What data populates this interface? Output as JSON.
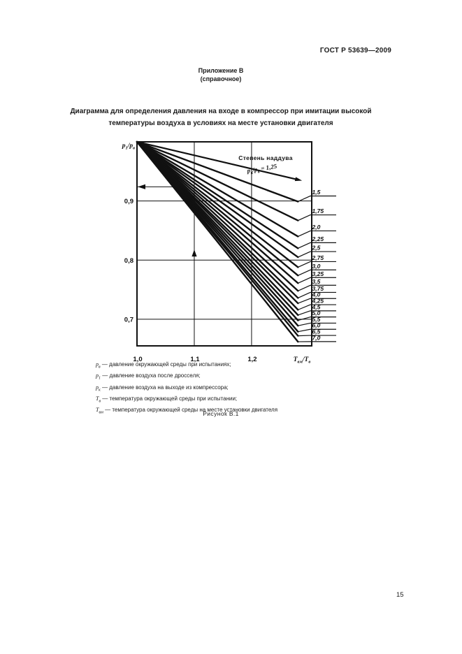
{
  "page": {
    "header": "ГОСТ Р 53639—2009",
    "appendix_title": "Приложение В",
    "appendix_subtitle": "(справочное)",
    "title": "Диаграмма для определения давления на входе в компрессор при имитации высокой температуры воздуха в условиях на месте установки двигателя",
    "figure_caption": "Рисунок В.1",
    "page_number": "15"
  },
  "legend": [
    {
      "symbol": "p_{в}",
      "text": "— давление окружающей среды при испытаниях;"
    },
    {
      "symbol": "p_{1}",
      "text": "— давление воздуха после дросселя;"
    },
    {
      "symbol": "p_{к}",
      "text": "— давление воздуха на выходе из компрессора;"
    },
    {
      "symbol": "T_{в}",
      "text": "— температура окружающей среды при испытании;"
    },
    {
      "symbol": "T_{вм}",
      "text": "— температура окружающей среды на месте установки двигателя"
    }
  ],
  "chart_data": {
    "type": "line",
    "title": "",
    "xlabel": "T_{вм}/T_{в}",
    "ylabel": "p_{1}/p_{в}",
    "xlim": [
      1.0,
      1.305
    ],
    "ylim": [
      0.655,
      1.0
    ],
    "grid": true,
    "x_ticks": [
      {
        "value": 1.0,
        "label": "1,0"
      },
      {
        "value": 1.1,
        "label": "1,1"
      },
      {
        "value": 1.2,
        "label": "1,2"
      }
    ],
    "y_ticks": [
      {
        "value": 0.9,
        "label": "0,9"
      },
      {
        "value": 0.8,
        "label": "0,8"
      },
      {
        "value": 0.7,
        "label": "0,7"
      }
    ],
    "annotation": {
      "line1": "Степень наддува",
      "line2": "p_{к}/p_{в} = 1,25"
    },
    "convergence_point": {
      "x": 1.0,
      "y": 1.0
    },
    "series_note": "each boost-ratio line runs straight from (1.0, 1.0) down to its end value of p1/pв at Tвм/Tв ≈ 1.28",
    "series": [
      {
        "label": "1,25",
        "x_end": 1.281,
        "y_end": 0.936,
        "annotated": true
      },
      {
        "label": "1,5",
        "x_end": 1.281,
        "y_end": 0.899
      },
      {
        "label": "1,75",
        "x_end": 1.281,
        "y_end": 0.867
      },
      {
        "label": "2,0",
        "x_end": 1.281,
        "y_end": 0.84
      },
      {
        "label": "2,25",
        "x_end": 1.281,
        "y_end": 0.82
      },
      {
        "label": "2,5",
        "x_end": 1.281,
        "y_end": 0.805
      },
      {
        "label": "2,75",
        "x_end": 1.281,
        "y_end": 0.788
      },
      {
        "label": "3,0",
        "x_end": 1.281,
        "y_end": 0.774
      },
      {
        "label": "3,25",
        "x_end": 1.281,
        "y_end": 0.761
      },
      {
        "label": "3,5",
        "x_end": 1.281,
        "y_end": 0.748
      },
      {
        "label": "3,75",
        "x_end": 1.281,
        "y_end": 0.736
      },
      {
        "label": "4,0",
        "x_end": 1.281,
        "y_end": 0.727
      },
      {
        "label": "4,25",
        "x_end": 1.281,
        "y_end": 0.716
      },
      {
        "label": "4,5",
        "x_end": 1.281,
        "y_end": 0.707
      },
      {
        "label": "5,0",
        "x_end": 1.281,
        "y_end": 0.698
      },
      {
        "label": "5,5",
        "x_end": 1.281,
        "y_end": 0.689
      },
      {
        "label": "6,0",
        "x_end": 1.281,
        "y_end": 0.679
      },
      {
        "label": "6,5",
        "x_end": 1.281,
        "y_end": 0.672
      },
      {
        "label": "7,0",
        "x_end": 1.281,
        "y_end": 0.662
      }
    ],
    "guides": {
      "horizontal": {
        "y": 0.924,
        "x_from": 1.0,
        "x_to": 1.082,
        "arrow": "left"
      },
      "vertical": {
        "x": 1.1,
        "arrow_y": 0.812,
        "arrow": "up"
      }
    },
    "line_color": "#111111"
  }
}
